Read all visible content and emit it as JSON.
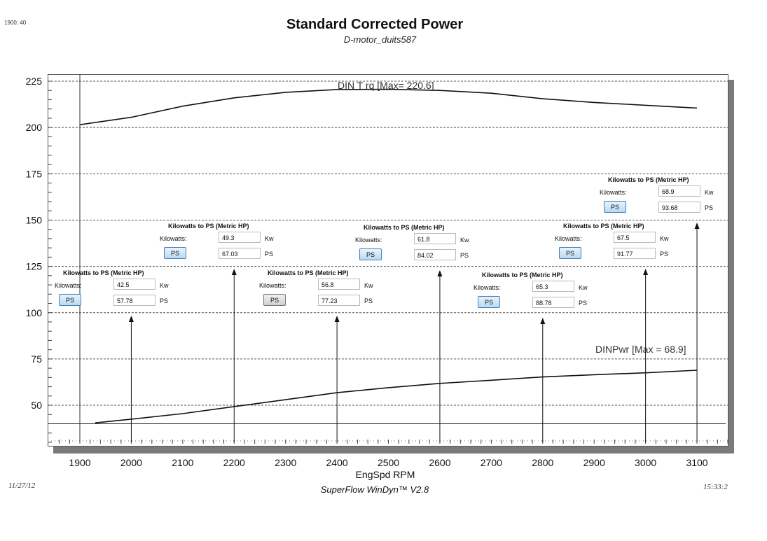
{
  "header": {
    "corner_label": "1900; 40",
    "title": "Standard Corrected Power",
    "subtitle": "D-motor_duits587"
  },
  "chart_data": {
    "type": "line",
    "title": "Standard Corrected Power",
    "subtitle": "D-motor_duits587",
    "xlabel": "EngSpd  RPM",
    "ylabel": "",
    "xlim": [
      1850,
      3180
    ],
    "ylim": [
      28,
      227
    ],
    "x_ticks": [
      1900,
      2000,
      2100,
      2200,
      2300,
      2400,
      2500,
      2600,
      2700,
      2800,
      2900,
      3000,
      3100
    ],
    "y_ticks": [
      50,
      75,
      100,
      125,
      150,
      175,
      200,
      225
    ],
    "grid": true,
    "baseline_y": 40,
    "series": [
      {
        "name": "DIN T rq",
        "label": "DIN T rq [Max= 220.6]",
        "x": [
          1900,
          2000,
          2100,
          2200,
          2300,
          2400,
          2500,
          2600,
          2700,
          2800,
          2900,
          3000,
          3100
        ],
        "values": [
          201.5,
          205.5,
          211.5,
          216,
          219,
          220.5,
          220.6,
          220,
          218.5,
          215.5,
          213.5,
          212,
          210.5
        ]
      },
      {
        "name": "DINPwr",
        "label": "DINPwr [Max = 68.9]",
        "x": [
          1930,
          2000,
          2100,
          2200,
          2300,
          2400,
          2500,
          2600,
          2700,
          2800,
          2900,
          3000,
          3100
        ],
        "values": [
          40.5,
          42.5,
          45.5,
          49.3,
          53,
          56.8,
          59.5,
          61.8,
          63.5,
          65.3,
          66.5,
          67.5,
          68.9
        ]
      }
    ]
  },
  "converters": [
    {
      "rpm": 2000,
      "title": "Kilowatts to PS (Metric HP)",
      "kw_label": "Kilowatts:",
      "kw": "42.5",
      "kw_unit": "Kw",
      "button": "PS",
      "ps": "57.78",
      "ps_unit": "PS",
      "gray": false
    },
    {
      "rpm": 2200,
      "title": "Kilowatts to PS (Metric HP)",
      "kw_label": "Kilowatts:",
      "kw": "49.3",
      "kw_unit": "Kw",
      "button": "PS",
      "ps": "67.03",
      "ps_unit": "PS",
      "gray": false
    },
    {
      "rpm": 2400,
      "title": "Kilowatts to PS (Metric HP)",
      "kw_label": "Kilowatts:",
      "kw": "56.8",
      "kw_unit": "Kw",
      "button": "PS",
      "ps": "77.23",
      "ps_unit": "PS",
      "gray": true
    },
    {
      "rpm": 2600,
      "title": "Kilowatts to PS (Metric HP)",
      "kw_label": "Kilowatts:",
      "kw": "61.8",
      "kw_unit": "Kw",
      "button": "PS",
      "ps": "84.02",
      "ps_unit": "PS",
      "gray": false
    },
    {
      "rpm": 2800,
      "title": "Kilowatts to PS (Metric HP)",
      "kw_label": "Kilowatts:",
      "kw": "65.3",
      "kw_unit": "Kw",
      "button": "PS",
      "ps": "88.78",
      "ps_unit": "PS",
      "gray": false
    },
    {
      "rpm": 3000,
      "title": "Kilowatts to PS (Metric HP)",
      "kw_label": "Kilowatts:",
      "kw": "67.5",
      "kw_unit": "Kw",
      "button": "PS",
      "ps": "91.77",
      "ps_unit": "PS",
      "gray": false
    },
    {
      "rpm": 3100,
      "title": "Kilowatts to PS (Metric HP)",
      "kw_label": "Kilowatts:",
      "kw": "68.9",
      "kw_unit": "Kw",
      "button": "PS",
      "ps": "93.68",
      "ps_unit": "PS",
      "gray": false
    }
  ],
  "footer": {
    "date": "11/27/12",
    "app": "SuperFlow WinDyn™  V2.8",
    "time": "15:33:2"
  }
}
